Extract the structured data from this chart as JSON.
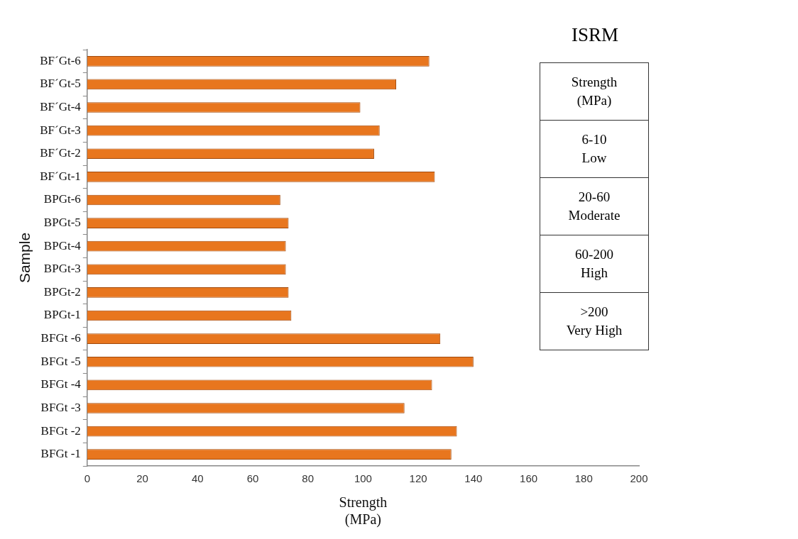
{
  "chart_data": {
    "type": "bar",
    "orientation": "horizontal",
    "xlabel": "Strength\n(MPa)",
    "ylabel": "Sample",
    "categories": [
      "BF´Gt-6",
      "BF´Gt-5",
      "BF´Gt-4",
      "BF´Gt-3",
      "BF´Gt-2",
      "BF´Gt-1",
      "BPGt-6",
      "BPGt-5",
      "BPGt-4",
      "BPGt-3",
      "BPGt-2",
      "BPGt-1",
      "BFGt -6",
      "BFGt -5",
      "BFGt -4",
      "BFGt -3",
      "BFGt -2",
      "BFGt -1"
    ],
    "values": [
      124,
      112,
      99,
      106,
      104,
      126,
      70,
      73,
      72,
      72,
      73,
      74,
      128,
      140,
      125,
      115,
      134,
      132
    ],
    "color": "#e8761e",
    "xlim": [
      0,
      200
    ],
    "xticks": [
      0,
      20,
      40,
      60,
      80,
      100,
      120,
      140,
      160,
      180,
      200
    ],
    "grid": false,
    "annotations": [
      "ISRM",
      "Strength\n(MPa)",
      "6-10\nLow",
      "20-60\nModerate",
      "60-200\nHigh",
      ">200\nVery High"
    ]
  }
}
